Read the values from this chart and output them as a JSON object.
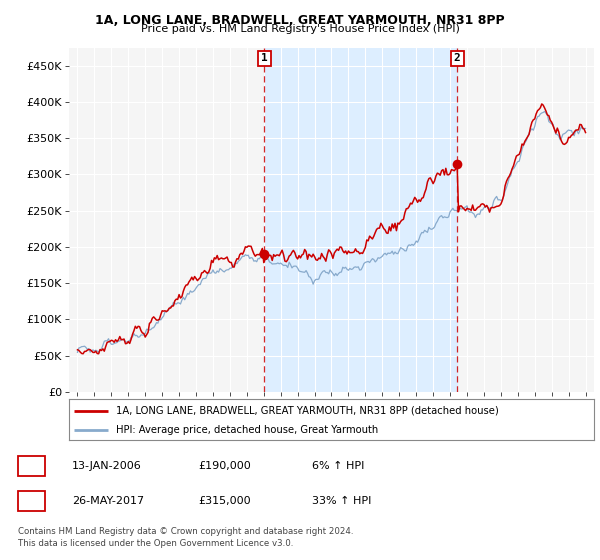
{
  "title_line1": "1A, LONG LANE, BRADWELL, GREAT YARMOUTH, NR31 8PP",
  "title_line2": "Price paid vs. HM Land Registry's House Price Index (HPI)",
  "ylabel_ticks": [
    "£0",
    "£50K",
    "£100K",
    "£150K",
    "£200K",
    "£250K",
    "£300K",
    "£350K",
    "£400K",
    "£450K"
  ],
  "ytick_values": [
    0,
    50000,
    100000,
    150000,
    200000,
    250000,
    300000,
    350000,
    400000,
    450000
  ],
  "xstart": 1995,
  "xend": 2025,
  "sale1_year": 2006.04,
  "sale1_price": 190000,
  "sale1_label": "1",
  "sale1_date": "13-JAN-2006",
  "sale1_price_str": "£190,000",
  "sale1_pct": "6% ↑ HPI",
  "sale2_year": 2017.42,
  "sale2_price": 315000,
  "sale2_label": "2",
  "sale2_date": "26-MAY-2017",
  "sale2_price_str": "£315,000",
  "sale2_pct": "33% ↑ HPI",
  "legend_label_red": "1A, LONG LANE, BRADWELL, GREAT YARMOUTH, NR31 8PP (detached house)",
  "legend_label_blue": "HPI: Average price, detached house, Great Yarmouth",
  "footer_line1": "Contains HM Land Registry data © Crown copyright and database right 2024.",
  "footer_line2": "This data is licensed under the Open Government Licence v3.0.",
  "red_color": "#cc0000",
  "blue_color": "#88aacc",
  "shade_color": "#ddeeff",
  "bg_color": "#ffffff",
  "plot_bg_color": "#f5f5f5"
}
